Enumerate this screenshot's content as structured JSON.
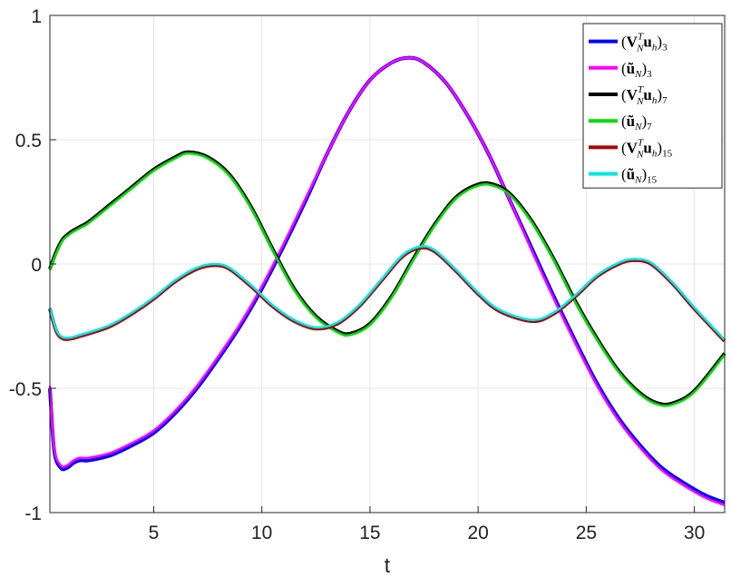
{
  "chart_data": {
    "type": "line",
    "xlabel": "t",
    "ylabel": "",
    "xlim": [
      0.2,
      31.4
    ],
    "ylim": [
      -1,
      1
    ],
    "grid": true,
    "legend_position": "top-right",
    "xticks": [
      5,
      10,
      15,
      20,
      25,
      30
    ],
    "xtick_labels": [
      "5",
      "10",
      "15",
      "20",
      "25",
      "30"
    ],
    "yticks": [
      -1,
      -0.5,
      0,
      0.5,
      1
    ],
    "ytick_labels": [
      "-1",
      "-0.5",
      "0",
      "0.5",
      "1"
    ],
    "series": [
      {
        "name": "(V_N^T u_h)_3",
        "legend": {
          "pre": "(",
          "bold": "V",
          "sup": "T",
          "sub": "N",
          "bold2": "u",
          "sub2": "h",
          "post": ")",
          "sub3": "3"
        },
        "color": "#0000ff",
        "x": [
          0.2,
          0.4,
          0.7,
          1.0,
          1.3,
          1.6,
          2.0,
          3.0,
          4.0,
          5.0,
          6.0,
          7.0,
          8.0,
          9.0,
          10.0,
          11.0,
          12.0,
          13.0,
          14.0,
          15.0,
          16.0,
          16.8,
          17.5,
          18.5,
          19.5,
          20.5,
          21.5,
          22.5,
          23.5,
          24.5,
          25.5,
          26.5,
          27.5,
          28.5,
          29.5,
          30.5,
          31.4
        ],
        "y": [
          -0.5,
          -0.75,
          -0.82,
          -0.82,
          -0.8,
          -0.79,
          -0.79,
          -0.77,
          -0.73,
          -0.68,
          -0.6,
          -0.5,
          -0.38,
          -0.25,
          -0.1,
          0.07,
          0.25,
          0.44,
          0.61,
          0.74,
          0.81,
          0.83,
          0.81,
          0.73,
          0.6,
          0.44,
          0.25,
          0.06,
          -0.13,
          -0.31,
          -0.48,
          -0.62,
          -0.73,
          -0.82,
          -0.88,
          -0.93,
          -0.96
        ]
      },
      {
        "name": "(ũ_N)_3",
        "legend": {
          "pre": "(",
          "bold": "ũ",
          "sub": "N",
          "post": ")",
          "sub3": "3"
        },
        "color": "#ff00ff",
        "x": [
          0.2,
          0.4,
          0.7,
          1.0,
          1.3,
          1.6,
          2.0,
          3.0,
          4.0,
          5.0,
          6.0,
          7.0,
          8.0,
          9.0,
          10.0,
          11.0,
          12.0,
          13.0,
          14.0,
          15.0,
          16.0,
          16.8,
          17.5,
          18.5,
          19.5,
          20.5,
          21.5,
          22.5,
          23.5,
          24.5,
          25.5,
          26.5,
          27.5,
          28.5,
          29.5,
          30.5,
          31.4
        ],
        "y": [
          -0.49,
          -0.74,
          -0.81,
          -0.81,
          -0.79,
          -0.78,
          -0.78,
          -0.76,
          -0.72,
          -0.67,
          -0.59,
          -0.49,
          -0.37,
          -0.24,
          -0.09,
          0.08,
          0.26,
          0.44,
          0.61,
          0.74,
          0.81,
          0.83,
          0.81,
          0.73,
          0.6,
          0.44,
          0.25,
          0.05,
          -0.14,
          -0.32,
          -0.49,
          -0.63,
          -0.74,
          -0.83,
          -0.89,
          -0.94,
          -0.97
        ]
      },
      {
        "name": "(V_N^T u_h)_7",
        "legend": {
          "pre": "(",
          "bold": "V",
          "sup": "T",
          "sub": "N",
          "bold2": "u",
          "sub2": "h",
          "post": ")",
          "sub3": "7"
        },
        "color": "#000000",
        "x": [
          0.2,
          0.5,
          0.8,
          1.2,
          1.6,
          2.0,
          3.0,
          4.0,
          5.0,
          6.0,
          6.6,
          7.5,
          8.5,
          9.5,
          10.5,
          11.5,
          12.5,
          13.5,
          14.1,
          15.0,
          16.0,
          17.0,
          18.0,
          19.0,
          20.0,
          20.7,
          21.5,
          22.5,
          23.5,
          24.5,
          25.5,
          26.5,
          27.5,
          28.3,
          29.0,
          30.0,
          31.4
        ],
        "y": [
          -0.02,
          0.05,
          0.1,
          0.13,
          0.15,
          0.17,
          0.24,
          0.31,
          0.38,
          0.43,
          0.45,
          0.43,
          0.36,
          0.23,
          0.06,
          -0.1,
          -0.21,
          -0.27,
          -0.28,
          -0.24,
          -0.13,
          0.02,
          0.16,
          0.27,
          0.32,
          0.32,
          0.28,
          0.17,
          0.02,
          -0.15,
          -0.3,
          -0.43,
          -0.52,
          -0.56,
          -0.56,
          -0.51,
          -0.36
        ]
      },
      {
        "name": "(ũ_N)_7",
        "legend": {
          "pre": "(",
          "bold": "ũ",
          "sub": "N",
          "post": ")",
          "sub3": "7"
        },
        "color": "#00dd00",
        "x": [
          0.2,
          0.5,
          0.8,
          1.2,
          1.6,
          2.0,
          3.0,
          4.0,
          5.0,
          6.0,
          6.6,
          7.5,
          8.5,
          9.5,
          10.5,
          11.5,
          12.5,
          13.5,
          14.1,
          15.0,
          16.0,
          17.0,
          18.0,
          19.0,
          20.0,
          20.7,
          21.5,
          22.5,
          23.5,
          24.5,
          25.5,
          26.5,
          27.5,
          28.3,
          29.0,
          30.0,
          31.4
        ],
        "y": [
          -0.025,
          0.045,
          0.095,
          0.125,
          0.145,
          0.165,
          0.235,
          0.305,
          0.375,
          0.425,
          0.445,
          0.425,
          0.355,
          0.225,
          0.055,
          -0.105,
          -0.215,
          -0.275,
          -0.285,
          -0.245,
          -0.135,
          0.015,
          0.155,
          0.265,
          0.315,
          0.315,
          0.275,
          0.165,
          0.015,
          -0.155,
          -0.305,
          -0.435,
          -0.525,
          -0.565,
          -0.565,
          -0.515,
          -0.365
        ]
      },
      {
        "name": "(V_N^T u_h)_15",
        "legend": {
          "pre": "(",
          "bold": "V",
          "sup": "T",
          "sub": "N",
          "bold2": "u",
          "sub2": "h",
          "post": ")",
          "sub3": "15"
        },
        "color": "#aa0000",
        "x": [
          0.2,
          0.5,
          0.8,
          1.2,
          1.6,
          2.0,
          3.0,
          4.0,
          5.0,
          6.0,
          7.0,
          7.8,
          8.5,
          9.5,
          10.5,
          11.5,
          12.5,
          13.5,
          14.5,
          15.5,
          16.5,
          17.3,
          18.0,
          19.0,
          20.0,
          21.0,
          22.5,
          23.5,
          24.5,
          25.5,
          26.5,
          27.2,
          28.0,
          29.0,
          30.0,
          31.4
        ],
        "y": [
          -0.18,
          -0.27,
          -0.3,
          -0.3,
          -0.29,
          -0.28,
          -0.25,
          -0.2,
          -0.14,
          -0.07,
          -0.02,
          -0.005,
          -0.02,
          -0.09,
          -0.17,
          -0.23,
          -0.26,
          -0.24,
          -0.17,
          -0.07,
          0.03,
          0.065,
          0.05,
          -0.03,
          -0.12,
          -0.19,
          -0.23,
          -0.2,
          -0.13,
          -0.05,
          0.0,
          0.015,
          0.0,
          -0.08,
          -0.18,
          -0.31
        ]
      },
      {
        "name": "(ũ_N)_15",
        "legend": {
          "pre": "(",
          "bold": "ũ",
          "sub": "N",
          "post": ")",
          "sub3": "15"
        },
        "color": "#00e5e5",
        "x": [
          0.2,
          0.5,
          0.8,
          1.2,
          1.6,
          2.0,
          3.0,
          4.0,
          5.0,
          6.0,
          7.0,
          7.8,
          8.5,
          9.5,
          10.5,
          11.5,
          12.5,
          13.5,
          14.5,
          15.5,
          16.5,
          17.3,
          18.0,
          19.0,
          20.0,
          21.0,
          22.5,
          23.5,
          24.5,
          25.5,
          26.5,
          27.2,
          28.0,
          29.0,
          30.0,
          31.4
        ],
        "y": [
          -0.175,
          -0.265,
          -0.295,
          -0.295,
          -0.285,
          -0.275,
          -0.245,
          -0.195,
          -0.135,
          -0.065,
          -0.015,
          0.0,
          -0.015,
          -0.085,
          -0.165,
          -0.225,
          -0.255,
          -0.235,
          -0.165,
          -0.065,
          0.035,
          0.07,
          0.055,
          -0.025,
          -0.115,
          -0.185,
          -0.225,
          -0.195,
          -0.125,
          -0.045,
          0.005,
          0.02,
          0.005,
          -0.075,
          -0.175,
          -0.305
        ]
      }
    ]
  }
}
